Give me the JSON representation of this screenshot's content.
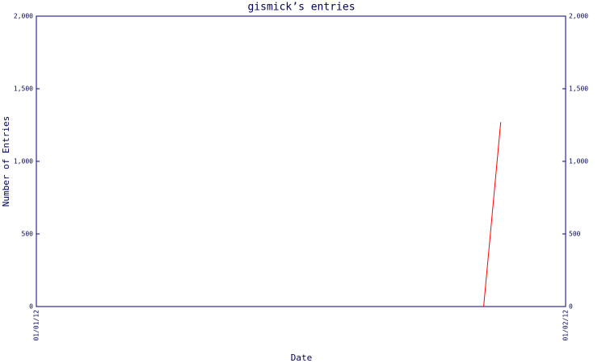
{
  "chart_data": {
    "type": "line",
    "title": "gismick’s entries",
    "x_label": "Date",
    "y_label": "Number of Entries",
    "x": [
      26.2,
      27.2
    ],
    "values": [
      0,
      1270
    ],
    "color": "#ff0000",
    "xlim": [
      0,
      31
    ],
    "xticks": [
      {
        "value": 0,
        "label": "01/01/12"
      },
      {
        "value": 31,
        "label": "01/02/12"
      }
    ],
    "ylim": [
      0,
      2000
    ],
    "yticks": [
      0,
      500,
      {
        "value": 1000,
        "label": "1,000"
      },
      {
        "value": 1500,
        "label": "1,500"
      },
      {
        "value": 2000,
        "label": "2,000"
      }
    ]
  }
}
